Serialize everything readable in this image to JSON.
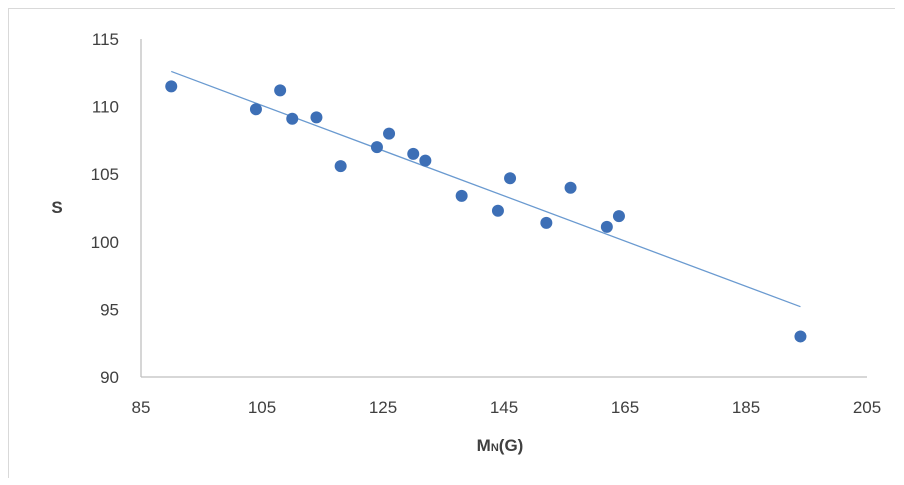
{
  "chart_data": {
    "type": "scatter",
    "title": "",
    "xlabel": "MN(G)",
    "xlabel_parts": [
      {
        "text": "M",
        "sub": false
      },
      {
        "text": "N",
        "sub": true
      },
      {
        "text": "(G)",
        "sub": false
      }
    ],
    "ylabel": "S",
    "xlim": [
      85,
      205
    ],
    "ylim": [
      90,
      115
    ],
    "xticks": [
      "85",
      "105",
      "125",
      "145",
      "165",
      "185",
      "205"
    ],
    "yticks": [
      "90",
      "95",
      "100",
      "105",
      "110",
      "115"
    ],
    "grid": false,
    "legend": "none",
    "point_color": "#3d6fb6",
    "trend_color": "#6a9ad0",
    "series": [
      {
        "points": [
          {
            "x": 90,
            "y": 111.5
          },
          {
            "x": 104,
            "y": 109.8
          },
          {
            "x": 108,
            "y": 111.2
          },
          {
            "x": 110,
            "y": 109.1
          },
          {
            "x": 114,
            "y": 109.2
          },
          {
            "x": 118,
            "y": 105.6
          },
          {
            "x": 124,
            "y": 107.0
          },
          {
            "x": 126,
            "y": 108.0
          },
          {
            "x": 130,
            "y": 106.5
          },
          {
            "x": 132,
            "y": 106.0
          },
          {
            "x": 138,
            "y": 103.4
          },
          {
            "x": 144,
            "y": 102.3
          },
          {
            "x": 146,
            "y": 104.7
          },
          {
            "x": 152,
            "y": 101.4
          },
          {
            "x": 156,
            "y": 104.0
          },
          {
            "x": 162,
            "y": 101.1
          },
          {
            "x": 164,
            "y": 101.9
          },
          {
            "x": 194,
            "y": 93.0
          }
        ]
      }
    ],
    "trendline": {
      "x1": 90,
      "y1": 112.6,
      "x2": 194,
      "y2": 95.2
    }
  }
}
